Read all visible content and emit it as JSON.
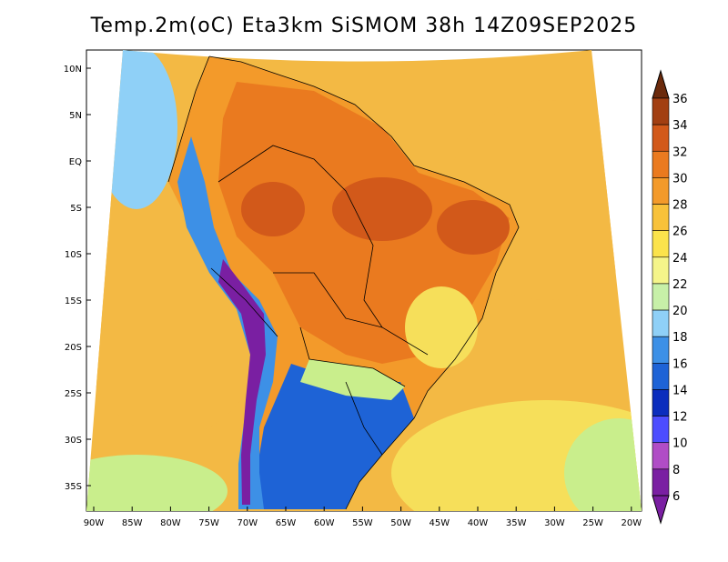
{
  "title": "Temp.2m(oC) Eta3km SiSMOM 38h 14Z09SEP2025",
  "lat_labels": [
    "10N",
    "5N",
    "EQ",
    "5S",
    "10S",
    "15S",
    "20S",
    "25S",
    "30S",
    "35S"
  ],
  "lon_labels": [
    "90W",
    "85W",
    "80W",
    "75W",
    "70W",
    "65W",
    "60W",
    "55W",
    "50W",
    "45W",
    "40W",
    "35W",
    "30W",
    "25W",
    "20W"
  ],
  "colorbar": {
    "levels": [
      "6",
      "8",
      "10",
      "12",
      "14",
      "16",
      "18",
      "20",
      "22",
      "24",
      "26",
      "28",
      "30",
      "32",
      "34",
      "36"
    ],
    "colors": [
      "#7a1fa2",
      "#b04dc6",
      "#4d4dff",
      "#0b2dbd",
      "#1e63d6",
      "#3d90e6",
      "#8fd0f7",
      "#c7f0a8",
      "#f5f58a",
      "#fbe34c",
      "#f8c23a",
      "#f39a2a",
      "#ea7a1f",
      "#d2591a",
      "#a23f12",
      "#6b2a0c"
    ]
  },
  "palette": {
    "ocean_warm": "#f3b944",
    "ocean_mild": "#f6df5a",
    "ocean_cool": "#c9ee8c",
    "ocean_cold": "#8fd0f7",
    "land_hot": "#ea7a1f",
    "land_very_hot": "#d2591a",
    "land_warm": "#f39a2a",
    "andes_cold": "#3d90e6",
    "andes_very_cold": "#7a1fa2",
    "south_cool": "#1e63d6",
    "border": "#000000"
  }
}
